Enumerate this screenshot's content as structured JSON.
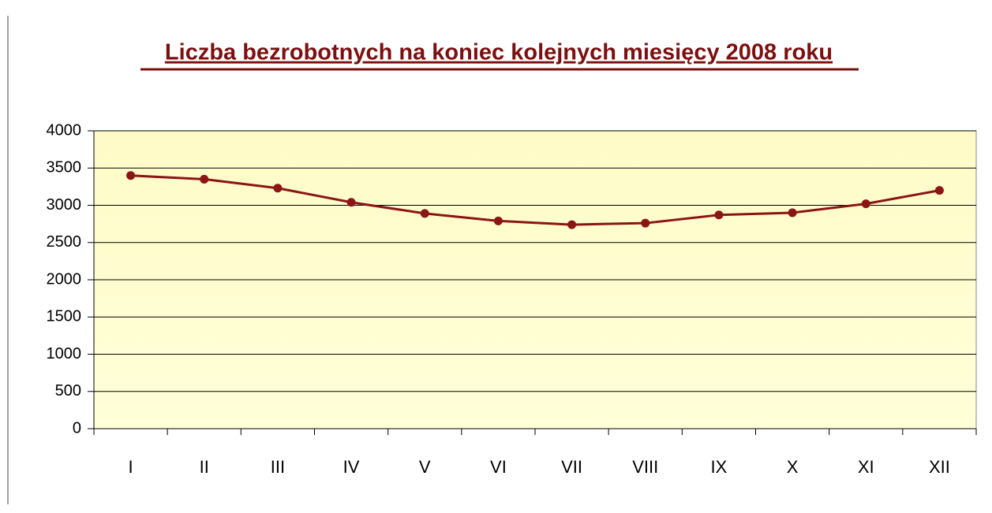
{
  "chart_data": {
    "type": "line",
    "title": "Liczba bezrobotnych na koniec kolejnych miesięcy 2008 roku",
    "categories": [
      "I",
      "II",
      "III",
      "IV",
      "V",
      "VI",
      "VII",
      "VIII",
      "IX",
      "X",
      "XI",
      "XII"
    ],
    "values": [
      3400,
      3350,
      3230,
      3040,
      2890,
      2790,
      2740,
      2760,
      2870,
      2900,
      3020,
      3200
    ],
    "color": "#8b1515",
    "ylim": [
      0,
      4000
    ],
    "yticks": [
      0,
      500,
      1000,
      1500,
      2000,
      2500,
      3000,
      3500,
      4000
    ],
    "grid": true
  }
}
